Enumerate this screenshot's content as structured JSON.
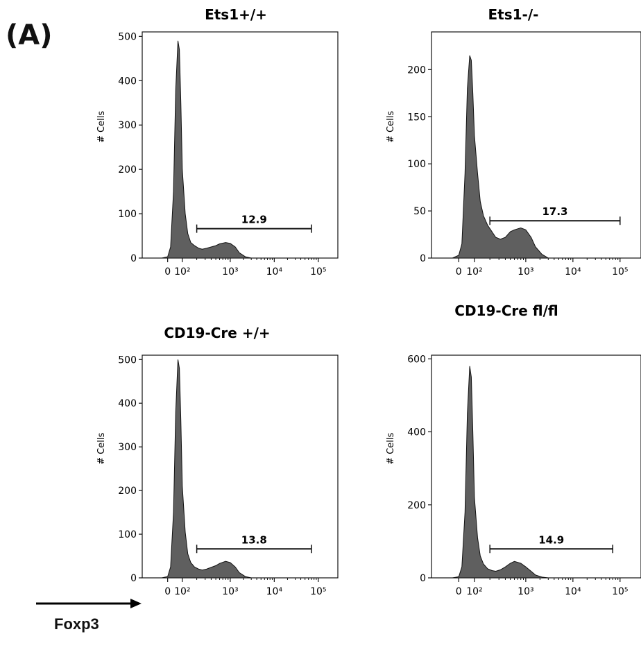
{
  "panel_label": "(A)",
  "x_axis_label": "Foxp3",
  "colors": {
    "fill": "#5f5f5f",
    "stroke": "#111111"
  },
  "chart_data": [
    {
      "type": "area",
      "title": "Ets1+/+",
      "xlabel": "",
      "ylabel": "# Cells",
      "x_scale": "biexponential",
      "x_ticks": [
        "0",
        "10²",
        "10³",
        "10⁴",
        "10⁵"
      ],
      "ylim": [
        0,
        510
      ],
      "y_ticks": [
        0,
        100,
        200,
        300,
        400,
        500
      ],
      "gate": {
        "label": "12.9",
        "range": [
          200,
          70000
        ]
      },
      "series": [
        {
          "x": [
            -40,
            0,
            20,
            40,
            55,
            70,
            80,
            90,
            100,
            115,
            130,
            150,
            180,
            220,
            260,
            320,
            400,
            500,
            600,
            800,
            1000,
            1300,
            1600,
            2200,
            3000
          ],
          "y": [
            0,
            3,
            25,
            150,
            380,
            490,
            470,
            350,
            200,
            100,
            55,
            35,
            28,
            22,
            20,
            22,
            25,
            28,
            32,
            35,
            33,
            25,
            12,
            3,
            0
          ]
        }
      ]
    },
    {
      "type": "area",
      "title": "Ets1-/-",
      "xlabel": "",
      "ylabel": "# Cells",
      "x_scale": "biexponential",
      "x_ticks": [
        "0",
        "10²",
        "10³",
        "10⁴",
        "10⁵"
      ],
      "ylim": [
        0,
        240
      ],
      "y_ticks": [
        0,
        50,
        100,
        150,
        200
      ],
      "gate": {
        "label": "17.3",
        "range": [
          200,
          100000
        ]
      },
      "series": [
        {
          "x": [
            -40,
            0,
            20,
            40,
            55,
            70,
            80,
            90,
            100,
            115,
            130,
            150,
            180,
            220,
            260,
            320,
            400,
            500,
            600,
            800,
            1000,
            1300,
            1600,
            2200,
            3000
          ],
          "y": [
            0,
            3,
            15,
            90,
            180,
            215,
            210,
            175,
            130,
            90,
            60,
            45,
            35,
            28,
            22,
            20,
            22,
            28,
            30,
            32,
            30,
            22,
            12,
            4,
            0
          ]
        }
      ]
    },
    {
      "type": "area",
      "title": "CD19-Cre +/+",
      "xlabel": "",
      "ylabel": "# Cells",
      "x_scale": "biexponential",
      "x_ticks": [
        "0",
        "10²",
        "10³",
        "10⁴",
        "10⁵"
      ],
      "ylim": [
        0,
        510
      ],
      "y_ticks": [
        0,
        100,
        200,
        300,
        400,
        500
      ],
      "gate": {
        "label": "13.8",
        "range": [
          200,
          70000
        ]
      },
      "series": [
        {
          "x": [
            -40,
            0,
            20,
            40,
            55,
            70,
            80,
            90,
            100,
            115,
            130,
            150,
            180,
            220,
            260,
            320,
            400,
            500,
            600,
            800,
            1000,
            1300,
            1600,
            2200,
            3000
          ],
          "y": [
            0,
            3,
            25,
            150,
            380,
            500,
            480,
            360,
            210,
            105,
            55,
            35,
            25,
            20,
            18,
            20,
            24,
            28,
            33,
            38,
            35,
            25,
            12,
            3,
            0
          ]
        }
      ]
    },
    {
      "type": "area",
      "title": "CD19-Cre fl/fl",
      "xlabel": "",
      "ylabel": "# Cells",
      "x_scale": "biexponential",
      "x_ticks": [
        "0",
        "10²",
        "10³",
        "10⁴",
        "10⁵"
      ],
      "ylim": [
        0,
        610
      ],
      "y_ticks": [
        0,
        200,
        400,
        600
      ],
      "gate": {
        "label": "14.9",
        "range": [
          200,
          70000
        ]
      },
      "series": [
        {
          "x": [
            -40,
            0,
            20,
            40,
            55,
            70,
            80,
            90,
            100,
            115,
            130,
            150,
            180,
            220,
            260,
            320,
            400,
            500,
            600,
            800,
            1000,
            1300,
            1600,
            2200,
            3000
          ],
          "y": [
            0,
            3,
            30,
            180,
            450,
            580,
            550,
            400,
            220,
            110,
            60,
            38,
            25,
            20,
            18,
            22,
            30,
            40,
            45,
            40,
            30,
            18,
            8,
            2,
            0
          ]
        }
      ]
    }
  ]
}
